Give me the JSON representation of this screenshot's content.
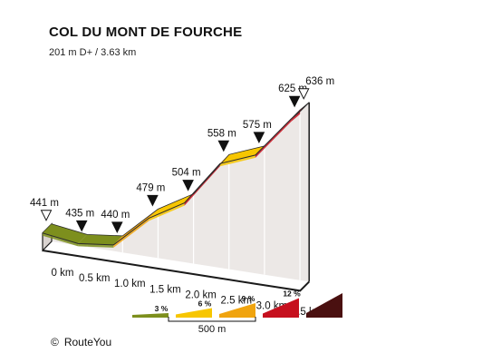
{
  "header": {
    "title": "COL DU MONT DE FOURCHE",
    "subtitle": "201 m D+ / 3.63 km"
  },
  "chart_data": {
    "type": "area",
    "title": "COL DU MONT DE FOURCHE",
    "subtitle": "201 m D+ / 3.63 km",
    "xlabel": "",
    "ylabel": "",
    "x_unit": "km",
    "y_unit": "m",
    "x_ticks": [
      "0 km",
      "0.5 km",
      "1.0 km",
      "1.5 km",
      "2.0 km",
      "2.5 km",
      "3.0 km",
      "3.5 km"
    ],
    "profile": {
      "x": [
        0,
        0.5,
        1.0,
        1.5,
        2.0,
        2.5,
        3.0,
        3.5,
        3.63
      ],
      "elevation": [
        441,
        435,
        440,
        479,
        504,
        558,
        575,
        625,
        636
      ],
      "elevation_labels": [
        "441 m",
        "435 m",
        "440 m",
        "479 m",
        "504 m",
        "558 m",
        "575 m",
        "625 m",
        "636 m"
      ],
      "segment_grade_class": [
        "3 %",
        "3 %",
        "9 %",
        "6 %",
        "12 %",
        "6 %",
        "12 %",
        "12 %"
      ]
    },
    "legend": {
      "items": [
        {
          "label": "3 %",
          "color": "#7d8f1d"
        },
        {
          "label": "6 %",
          "color": "#f7c600"
        },
        {
          "label": "9 %",
          "color": "#f0a40f"
        },
        {
          "label": "12 %",
          "color": "#c6101e"
        },
        {
          "label": "",
          "color": "#4a1010"
        }
      ],
      "scale_label": "500 m"
    }
  },
  "colors": {
    "grade_3": "#7d8f1d",
    "grade_6": "#f7c600",
    "grade_9": "#f0a40f",
    "grade_12": "#c6101e",
    "grade_max": "#4a1010",
    "side_wall": "#ece8e6",
    "top_dark": "#1a1a1a"
  },
  "credit": {
    "symbol": "©",
    "text": "RouteYou"
  }
}
